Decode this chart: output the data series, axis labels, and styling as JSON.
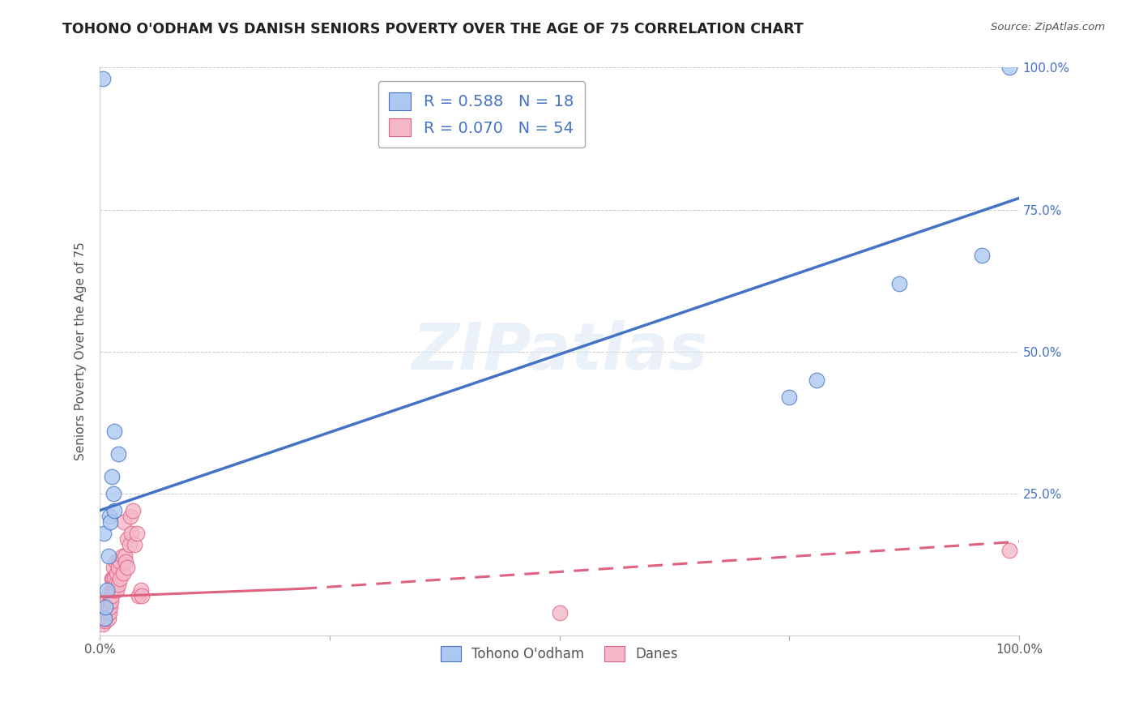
{
  "title": "TOHONO O'ODHAM VS DANISH SENIORS POVERTY OVER THE AGE OF 75 CORRELATION CHART",
  "source": "Source: ZipAtlas.com",
  "ylabel": "Seniors Poverty Over the Age of 75",
  "watermark": "ZIPatlas",
  "blue_R": 0.588,
  "blue_N": 18,
  "pink_R": 0.07,
  "pink_N": 54,
  "blue_label": "Tohono O'odham",
  "pink_label": "Danes",
  "blue_color": "#adc8f0",
  "pink_color": "#f5b8c8",
  "blue_line_color": "#4472c4",
  "pink_line_color": "#e06080",
  "blue_scatter": [
    [
      0.003,
      0.98
    ],
    [
      0.004,
      0.18
    ],
    [
      0.005,
      0.03
    ],
    [
      0.006,
      0.05
    ],
    [
      0.008,
      0.08
    ],
    [
      0.009,
      0.14
    ],
    [
      0.01,
      0.21
    ],
    [
      0.011,
      0.2
    ],
    [
      0.013,
      0.28
    ],
    [
      0.015,
      0.25
    ],
    [
      0.016,
      0.36
    ],
    [
      0.016,
      0.22
    ],
    [
      0.02,
      0.32
    ],
    [
      0.75,
      0.42
    ],
    [
      0.78,
      0.45
    ],
    [
      0.87,
      0.62
    ],
    [
      0.96,
      0.67
    ],
    [
      0.99,
      1.0
    ]
  ],
  "pink_scatter": [
    [
      0.002,
      0.025
    ],
    [
      0.003,
      0.02
    ],
    [
      0.004,
      0.04
    ],
    [
      0.004,
      0.03
    ],
    [
      0.005,
      0.035
    ],
    [
      0.005,
      0.04
    ],
    [
      0.006,
      0.025
    ],
    [
      0.006,
      0.03
    ],
    [
      0.007,
      0.04
    ],
    [
      0.007,
      0.05
    ],
    [
      0.008,
      0.04
    ],
    [
      0.008,
      0.06
    ],
    [
      0.009,
      0.03
    ],
    [
      0.009,
      0.05
    ],
    [
      0.01,
      0.06
    ],
    [
      0.01,
      0.04
    ],
    [
      0.011,
      0.07
    ],
    [
      0.011,
      0.05
    ],
    [
      0.012,
      0.08
    ],
    [
      0.012,
      0.06
    ],
    [
      0.013,
      0.1
    ],
    [
      0.013,
      0.07
    ],
    [
      0.014,
      0.08
    ],
    [
      0.014,
      0.1
    ],
    [
      0.015,
      0.09
    ],
    [
      0.015,
      0.12
    ],
    [
      0.016,
      0.1
    ],
    [
      0.016,
      0.08
    ],
    [
      0.017,
      0.13
    ],
    [
      0.017,
      0.09
    ],
    [
      0.018,
      0.11
    ],
    [
      0.018,
      0.08
    ],
    [
      0.02,
      0.12
    ],
    [
      0.02,
      0.09
    ],
    [
      0.022,
      0.1
    ],
    [
      0.022,
      0.13
    ],
    [
      0.024,
      0.14
    ],
    [
      0.025,
      0.11
    ],
    [
      0.026,
      0.2
    ],
    [
      0.027,
      0.14
    ],
    [
      0.028,
      0.13
    ],
    [
      0.03,
      0.12
    ],
    [
      0.03,
      0.17
    ],
    [
      0.032,
      0.16
    ],
    [
      0.033,
      0.21
    ],
    [
      0.034,
      0.18
    ],
    [
      0.036,
      0.22
    ],
    [
      0.038,
      0.16
    ],
    [
      0.04,
      0.18
    ],
    [
      0.042,
      0.07
    ],
    [
      0.045,
      0.08
    ],
    [
      0.046,
      0.07
    ],
    [
      0.5,
      0.04
    ],
    [
      0.99,
      0.15
    ]
  ],
  "blue_trendline_solid": [
    [
      0.0,
      0.22
    ],
    [
      0.1,
      0.275
    ]
  ],
  "blue_trendline_full": [
    [
      0.0,
      0.22
    ],
    [
      1.0,
      0.77
    ]
  ],
  "pink_trendline_solid": [
    [
      0.0,
      0.068
    ],
    [
      0.22,
      0.082
    ]
  ],
  "pink_trendline_dashed": [
    [
      0.22,
      0.082
    ],
    [
      1.0,
      0.165
    ]
  ],
  "xlim": [
    0.0,
    1.0
  ],
  "ylim": [
    0.0,
    1.0
  ],
  "xticks": [
    0.0,
    0.25,
    0.5,
    0.75,
    1.0
  ],
  "xticklabels_show": [
    "0.0%",
    "",
    "",
    "",
    "100.0%"
  ],
  "yticks": [
    0.0,
    0.25,
    0.5,
    0.75,
    1.0
  ],
  "left_yticklabels": [
    "",
    "",
    "",
    "",
    ""
  ],
  "right_ytick_labels": [
    "",
    "25.0%",
    "50.0%",
    "75.0%",
    "100.0%"
  ],
  "grid_color": "#cccccc",
  "background_color": "#ffffff",
  "title_fontsize": 12.5,
  "label_fontsize": 11,
  "tick_fontsize": 11,
  "legend_color": "#4472c4",
  "stat_text_color": "#4472c4"
}
